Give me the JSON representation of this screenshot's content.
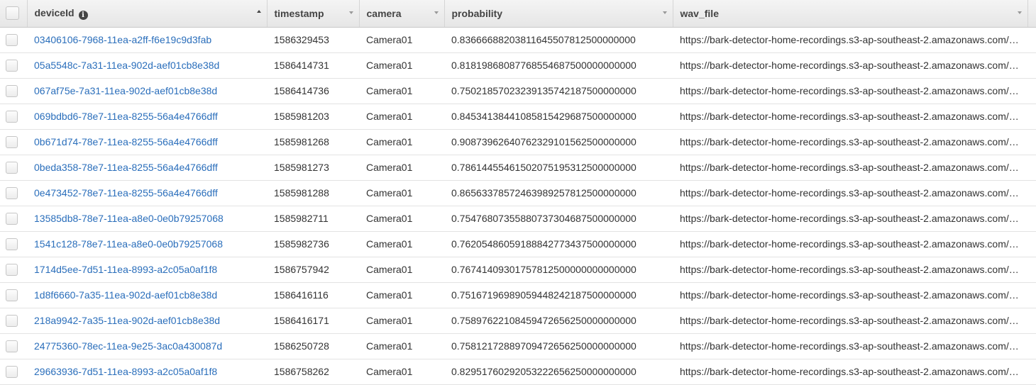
{
  "columns": [
    {
      "key": "deviceId",
      "label": "deviceId",
      "sort": "ascending",
      "has_info_icon": true
    },
    {
      "key": "timestamp",
      "label": "timestamp"
    },
    {
      "key": "camera",
      "label": "camera"
    },
    {
      "key": "probability",
      "label": "probability"
    },
    {
      "key": "wav_file",
      "label": "wav_file"
    }
  ],
  "colors": {
    "link": "#2a6ebb",
    "header_bg": "#eaeaea"
  },
  "rows": [
    {
      "deviceId": "03406106-7968-11ea-a2ff-f6e19c9d3fab",
      "timestamp": "1586329453",
      "camera": "Camera01",
      "probability": "0.83666688203811645507812500000000",
      "wav_file": "https://bark-detector-home-recordings.s3-ap-southeast-2.amazonaws.com/…"
    },
    {
      "deviceId": "05a5548c-7a31-11ea-902d-aef01cb8e38d",
      "timestamp": "1586414731",
      "camera": "Camera01",
      "probability": "0.81819868087768554687500000000000",
      "wav_file": "https://bark-detector-home-recordings.s3-ap-southeast-2.amazonaws.com/…"
    },
    {
      "deviceId": "067af75e-7a31-11ea-902d-aef01cb8e38d",
      "timestamp": "1586414736",
      "camera": "Camera01",
      "probability": "0.75021857023239135742187500000000",
      "wav_file": "https://bark-detector-home-recordings.s3-ap-southeast-2.amazonaws.com/…"
    },
    {
      "deviceId": "069bdbd6-78e7-11ea-8255-56a4e4766dff",
      "timestamp": "1585981203",
      "camera": "Camera01",
      "probability": "0.84534138441085815429687500000000",
      "wav_file": "https://bark-detector-home-recordings.s3-ap-southeast-2.amazonaws.com/…"
    },
    {
      "deviceId": "0b671d74-78e7-11ea-8255-56a4e4766dff",
      "timestamp": "1585981268",
      "camera": "Camera01",
      "probability": "0.90873962640762329101562500000000",
      "wav_file": "https://bark-detector-home-recordings.s3-ap-southeast-2.amazonaws.com/…"
    },
    {
      "deviceId": "0beda358-78e7-11ea-8255-56a4e4766dff",
      "timestamp": "1585981273",
      "camera": "Camera01",
      "probability": "0.78614455461502075195312500000000",
      "wav_file": "https://bark-detector-home-recordings.s3-ap-southeast-2.amazonaws.com/…"
    },
    {
      "deviceId": "0e473452-78e7-11ea-8255-56a4e4766dff",
      "timestamp": "1585981288",
      "camera": "Camera01",
      "probability": "0.86563378572463989257812500000000",
      "wav_file": "https://bark-detector-home-recordings.s3-ap-southeast-2.amazonaws.com/…"
    },
    {
      "deviceId": "13585db8-78e7-11ea-a8e0-0e0b79257068",
      "timestamp": "1585982711",
      "camera": "Camera01",
      "probability": "0.75476807355880737304687500000000",
      "wav_file": "https://bark-detector-home-recordings.s3-ap-southeast-2.amazonaws.com/…"
    },
    {
      "deviceId": "1541c128-78e7-11ea-a8e0-0e0b79257068",
      "timestamp": "1585982736",
      "camera": "Camera01",
      "probability": "0.76205486059188842773437500000000",
      "wav_file": "https://bark-detector-home-recordings.s3-ap-southeast-2.amazonaws.com/…"
    },
    {
      "deviceId": "1714d5ee-7d51-11ea-8993-a2c05a0af1f8",
      "timestamp": "1586757942",
      "camera": "Camera01",
      "probability": "0.76741409301757812500000000000000",
      "wav_file": "https://bark-detector-home-recordings.s3-ap-southeast-2.amazonaws.com/…"
    },
    {
      "deviceId": "1d8f6660-7a35-11ea-902d-aef01cb8e38d",
      "timestamp": "1586416116",
      "camera": "Camera01",
      "probability": "0.75167196989059448242187500000000",
      "wav_file": "https://bark-detector-home-recordings.s3-ap-southeast-2.amazonaws.com/…"
    },
    {
      "deviceId": "218a9942-7a35-11ea-902d-aef01cb8e38d",
      "timestamp": "1586416171",
      "camera": "Camera01",
      "probability": "0.75897622108459472656250000000000",
      "wav_file": "https://bark-detector-home-recordings.s3-ap-southeast-2.amazonaws.com/…"
    },
    {
      "deviceId": "24775360-78ec-11ea-9e25-3ac0a430087d",
      "timestamp": "1586250728",
      "camera": "Camera01",
      "probability": "0.75812172889709472656250000000000",
      "wav_file": "https://bark-detector-home-recordings.s3-ap-southeast-2.amazonaws.com/…"
    },
    {
      "deviceId": "29663936-7d51-11ea-8993-a2c05a0af1f8",
      "timestamp": "1586758262",
      "camera": "Camera01",
      "probability": "0.82951760292053222656250000000000",
      "wav_file": "https://bark-detector-home-recordings.s3-ap-southeast-2.amazonaws.com/…"
    }
  ]
}
